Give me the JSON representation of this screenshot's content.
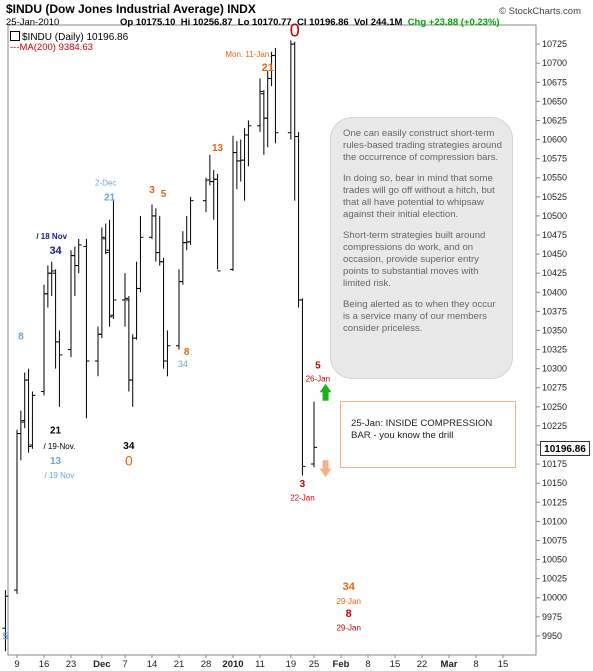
{
  "header": {
    "title": "$INDU (Dow Jones Industrial Average) INDX",
    "date": "25-Jan-2010",
    "open": "Op 10175.10",
    "high": "Hi 10256.87",
    "low": "Lo 10170.77",
    "close": "Cl 10196.86",
    "volume": "Vol 244.1M",
    "change": "Chg +23.88 (+0.23%)",
    "credit": "© StockCharts.com",
    "legend_price": "$INDU (Daily) 10196.86",
    "legend_ma": "MA(200) 9384.63"
  },
  "note": {
    "paragraphs": [
      "One can easily construct short-term rules-based trading strategies around the occurrence of compression bars.",
      "In doing so, bear in mind that some trades will go off without a hitch, but that all have potential to whipsaw against their initial election.",
      "Short-term strategies built around compressions do work, and on occasion, provide superior entry points to substantial moves with limited risk.",
      "Being alerted as to when they occur is a service many of our members consider priceless."
    ]
  },
  "callout": {
    "text": "25-Jan: INSIDE COMPRESSION BAR - you know the drill"
  },
  "last_price_label": "10196.86",
  "colors": {
    "bars": "#000000",
    "light_blue": "#6aa7d8",
    "orange": "#e5670f",
    "red": "#cc0000",
    "navy": "#1a1a8c",
    "up_arrow": "#19b219",
    "down_arrow": "#f4b183"
  },
  "chart_data": {
    "type": "ohlc",
    "title": "$INDU (Dow Jones Industrial Average) INDX",
    "ylim": [
      9925,
      10750
    ],
    "y_ticks": [
      9950,
      9975,
      10000,
      10025,
      10050,
      10075,
      10100,
      10125,
      10150,
      10175,
      10200,
      10225,
      10250,
      10275,
      10300,
      10325,
      10350,
      10375,
      10400,
      10425,
      10450,
      10475,
      10500,
      10525,
      10550,
      10575,
      10600,
      10625,
      10650,
      10675,
      10700,
      10725
    ],
    "x_ticks": [
      {
        "label": "9",
        "date": "2009-11-09"
      },
      {
        "label": "16",
        "date": "2009-11-16"
      },
      {
        "label": "23",
        "date": "2009-11-23"
      },
      {
        "label": "Dec",
        "date": "2009-12-01",
        "bold": true
      },
      {
        "label": "7",
        "date": "2009-12-07"
      },
      {
        "label": "14",
        "date": "2009-12-14"
      },
      {
        "label": "21",
        "date": "2009-12-21"
      },
      {
        "label": "28",
        "date": "2009-12-28"
      },
      {
        "label": "2010",
        "date": "2010-01-04",
        "bold": true
      },
      {
        "label": "11",
        "date": "2010-01-11"
      },
      {
        "label": "19",
        "date": "2010-01-19"
      },
      {
        "label": "25",
        "date": "2010-01-25"
      },
      {
        "label": "Feb",
        "date": "2010-02-01",
        "bold": true
      },
      {
        "label": "8",
        "date": "2010-02-08"
      },
      {
        "label": "15",
        "date": "2010-02-15"
      },
      {
        "label": "22",
        "date": "2010-02-22"
      },
      {
        "label": "Mar",
        "date": "2010-03-01",
        "bold": true
      },
      {
        "label": "8",
        "date": "2010-03-08"
      },
      {
        "label": "15",
        "date": "2010-03-15"
      }
    ],
    "bars": [
      {
        "date": "2009-11-06",
        "o": 9960,
        "h": 10010,
        "l": 9930,
        "c": 10002
      },
      {
        "date": "2009-11-09",
        "o": 10010,
        "h": 10220,
        "l": 10005,
        "c": 10215
      },
      {
        "date": "2009-11-10",
        "o": 10215,
        "h": 10245,
        "l": 10180,
        "c": 10230
      },
      {
        "date": "2009-11-11",
        "o": 10232,
        "h": 10295,
        "l": 10222,
        "c": 10285
      },
      {
        "date": "2009-11-12",
        "o": 10285,
        "h": 10300,
        "l": 10190,
        "c": 10198
      },
      {
        "date": "2009-11-13",
        "o": 10200,
        "h": 10270,
        "l": 10195,
        "c": 10265
      },
      {
        "date": "2009-11-16",
        "o": 10270,
        "h": 10410,
        "l": 10265,
        "c": 10398
      },
      {
        "date": "2009-11-17",
        "o": 10398,
        "h": 10435,
        "l": 10380,
        "c": 10425
      },
      {
        "date": "2009-11-18",
        "o": 10425,
        "h": 10440,
        "l": 10395,
        "c": 10428
      },
      {
        "date": "2009-11-19",
        "o": 10425,
        "h": 10430,
        "l": 10300,
        "c": 10335
      },
      {
        "date": "2009-11-20",
        "o": 10335,
        "h": 10350,
        "l": 10250,
        "c": 10318
      },
      {
        "date": "2009-11-23",
        "o": 10325,
        "h": 10455,
        "l": 10315,
        "c": 10448
      },
      {
        "date": "2009-11-24",
        "o": 10448,
        "h": 10460,
        "l": 10395,
        "c": 10435
      },
      {
        "date": "2009-11-25",
        "o": 10435,
        "h": 10470,
        "l": 10425,
        "c": 10462
      },
      {
        "date": "2009-11-27",
        "o": 10460,
        "h": 10470,
        "l": 10235,
        "c": 10310
      },
      {
        "date": "2009-11-30",
        "o": 10310,
        "h": 10355,
        "l": 10290,
        "c": 10345
      },
      {
        "date": "2009-12-01",
        "o": 10345,
        "h": 10485,
        "l": 10340,
        "c": 10472
      },
      {
        "date": "2009-12-02",
        "o": 10470,
        "h": 10490,
        "l": 10450,
        "c": 10452
      },
      {
        "date": "2009-12-03",
        "o": 10455,
        "h": 10495,
        "l": 10355,
        "c": 10368
      },
      {
        "date": "2009-12-04",
        "o": 10370,
        "h": 10520,
        "l": 10365,
        "c": 10390
      },
      {
        "date": "2009-12-07",
        "o": 10390,
        "h": 10425,
        "l": 10355,
        "c": 10392
      },
      {
        "date": "2009-12-08",
        "o": 10390,
        "h": 10395,
        "l": 10270,
        "c": 10285
      },
      {
        "date": "2009-12-09",
        "o": 10285,
        "h": 10345,
        "l": 10250,
        "c": 10340
      },
      {
        "date": "2009-12-10",
        "o": 10340,
        "h": 10440,
        "l": 10338,
        "c": 10405
      },
      {
        "date": "2009-12-11",
        "o": 10405,
        "h": 10500,
        "l": 10400,
        "c": 10472
      },
      {
        "date": "2009-12-14",
        "o": 10472,
        "h": 10515,
        "l": 10470,
        "c": 10500
      },
      {
        "date": "2009-12-15",
        "o": 10500,
        "h": 10510,
        "l": 10440,
        "c": 10452
      },
      {
        "date": "2009-12-16",
        "o": 10452,
        "h": 10500,
        "l": 10435,
        "c": 10440
      },
      {
        "date": "2009-12-17",
        "o": 10440,
        "h": 10445,
        "l": 10300,
        "c": 10310
      },
      {
        "date": "2009-12-18",
        "o": 10310,
        "h": 10350,
        "l": 10290,
        "c": 10330
      },
      {
        "date": "2009-12-21",
        "o": 10330,
        "h": 10430,
        "l": 10325,
        "c": 10414
      },
      {
        "date": "2009-12-22",
        "o": 10414,
        "h": 10480,
        "l": 10410,
        "c": 10465
      },
      {
        "date": "2009-12-23",
        "o": 10465,
        "h": 10500,
        "l": 10455,
        "c": 10466
      },
      {
        "date": "2009-12-24",
        "o": 10466,
        "h": 10525,
        "l": 10462,
        "c": 10520
      },
      {
        "date": "2009-12-28",
        "o": 10520,
        "h": 10550,
        "l": 10505,
        "c": 10547
      },
      {
        "date": "2009-12-29",
        "o": 10547,
        "h": 10580,
        "l": 10540,
        "c": 10545
      },
      {
        "date": "2009-12-30",
        "o": 10545,
        "h": 10560,
        "l": 10495,
        "c": 10548
      },
      {
        "date": "2009-12-31",
        "o": 10548,
        "h": 10555,
        "l": 10430,
        "c": 10428
      },
      {
        "date": "2010-01-04",
        "o": 10430,
        "h": 10605,
        "l": 10428,
        "c": 10583
      },
      {
        "date": "2010-01-05",
        "o": 10583,
        "h": 10598,
        "l": 10535,
        "c": 10572
      },
      {
        "date": "2010-01-06",
        "o": 10572,
        "h": 10600,
        "l": 10545,
        "c": 10573
      },
      {
        "date": "2010-01-07",
        "o": 10573,
        "h": 10615,
        "l": 10520,
        "c": 10606
      },
      {
        "date": "2010-01-08",
        "o": 10606,
        "h": 10625,
        "l": 10565,
        "c": 10618
      },
      {
        "date": "2010-01-11",
        "o": 10618,
        "h": 10680,
        "l": 10610,
        "c": 10663
      },
      {
        "date": "2010-01-12",
        "o": 10660,
        "h": 10665,
        "l": 10580,
        "c": 10628
      },
      {
        "date": "2010-01-13",
        "o": 10628,
        "h": 10690,
        "l": 10590,
        "c": 10680
      },
      {
        "date": "2010-01-14",
        "o": 10680,
        "h": 10715,
        "l": 10670,
        "c": 10710
      },
      {
        "date": "2010-01-15",
        "o": 10710,
        "h": 10720,
        "l": 10595,
        "c": 10609
      },
      {
        "date": "2010-01-19",
        "o": 10609,
        "h": 10730,
        "l": 10600,
        "c": 10725
      },
      {
        "date": "2010-01-20",
        "o": 10725,
        "h": 10728,
        "l": 10520,
        "c": 10604
      },
      {
        "date": "2010-01-21",
        "o": 10604,
        "h": 10610,
        "l": 10380,
        "c": 10390
      },
      {
        "date": "2010-01-22",
        "o": 10390,
        "h": 10392,
        "l": 10160,
        "c": 10172
      },
      {
        "date": "2010-01-25",
        "o": 10175.1,
        "h": 10256.87,
        "l": 10170.77,
        "c": 10196.86
      }
    ],
    "wave_labels": [
      {
        "text": "5",
        "date": "2009-11-06",
        "y": 9945,
        "color": "light_blue",
        "size": 10,
        "bold": true
      },
      {
        "text": "8",
        "date": "2009-11-10",
        "y": 10338,
        "color": "light_blue",
        "size": 10,
        "bold": true
      },
      {
        "text": "21",
        "date": "2009-11-19",
        "y": 10215,
        "color": "bars",
        "size": 10,
        "bold": true
      },
      {
        "text": "13",
        "date": "2009-11-19",
        "y": 10175,
        "color": "light_blue",
        "size": 10,
        "bold": true
      },
      {
        "text": "/ 19-Nov.",
        "date": "2009-11-20",
        "y": 10195,
        "color": "bars",
        "size": 8,
        "bold": false
      },
      {
        "text": "/ 19 Nov",
        "date": "2009-11-20",
        "y": 10157,
        "color": "light_blue",
        "size": 8,
        "bold": false
      },
      {
        "text": "/ 18 Nov",
        "date": "2009-11-18",
        "y": 10470,
        "color": "navy",
        "size": 8,
        "bold": true
      },
      {
        "text": "34",
        "date": "2009-11-19",
        "y": 10450,
        "color": "navy",
        "size": 11,
        "bold": true
      },
      {
        "text": "2-Dec",
        "date": "2009-12-02",
        "y": 10540,
        "color": "light_blue",
        "size": 8,
        "bold": false
      },
      {
        "text": "21",
        "date": "2009-12-03",
        "y": 10520,
        "color": "light_blue",
        "size": 10,
        "bold": true
      },
      {
        "text": "34",
        "date": "2009-12-08",
        "y": 10195,
        "color": "bars",
        "size": 10,
        "bold": true
      },
      {
        "text": "0",
        "date": "2009-12-08",
        "y": 10173,
        "color": "orange",
        "size": 14,
        "bold": false
      },
      {
        "text": "3",
        "date": "2009-12-14",
        "y": 10530,
        "color": "orange",
        "size": 10,
        "bold": true
      },
      {
        "text": "5",
        "date": "2009-12-17",
        "y": 10525,
        "color": "orange",
        "size": 10,
        "bold": true
      },
      {
        "text": "8",
        "date": "2009-12-23",
        "y": 10318,
        "color": "orange",
        "size": 10,
        "bold": true
      },
      {
        "text": "34",
        "date": "2009-12-22",
        "y": 10302,
        "color": "light_blue",
        "size": 9,
        "bold": false
      },
      {
        "text": "13",
        "date": "2009-12-31",
        "y": 10585,
        "color": "orange",
        "size": 10,
        "bold": true
      },
      {
        "text": "Mon. 11-Jan.",
        "date": "2010-01-08",
        "y": 10708,
        "color": "orange",
        "size": 8,
        "bold": false
      },
      {
        "text": "21",
        "date": "2010-01-13",
        "y": 10690,
        "color": "orange",
        "size": 11,
        "bold": true
      },
      {
        "text": "0",
        "date": "2010-01-20",
        "y": 10735,
        "color": "red",
        "size": 18,
        "bold": false
      },
      {
        "text": "5",
        "date": "2010-01-26",
        "y": 10300,
        "color": "red",
        "size": 10,
        "bold": true
      },
      {
        "text": "26-Jan",
        "date": "2010-01-26",
        "y": 10283,
        "color": "red",
        "size": 8,
        "bold": false
      },
      {
        "text": "3",
        "date": "2010-01-22",
        "y": 10145,
        "color": "red",
        "size": 10,
        "bold": true
      },
      {
        "text": "22-Jan",
        "date": "2010-01-22",
        "y": 10127,
        "color": "red",
        "size": 8,
        "bold": false
      },
      {
        "text": "34",
        "date": "2010-02-03",
        "y": 10010,
        "color": "orange",
        "size": 11,
        "bold": true
      },
      {
        "text": "29-Jan",
        "date": "2010-02-03",
        "y": 9992,
        "color": "orange",
        "size": 8,
        "bold": false
      },
      {
        "text": "8",
        "date": "2010-02-03",
        "y": 9975,
        "color": "red",
        "size": 11,
        "bold": true
      },
      {
        "text": "29-Jan",
        "date": "2010-02-03",
        "y": 9957,
        "color": "red",
        "size": 8,
        "bold": false
      }
    ],
    "arrows": [
      {
        "direction": "up",
        "date": "2010-01-28",
        "y_top": 10280,
        "y_bottom": 10258,
        "color": "up_arrow"
      },
      {
        "direction": "down",
        "date": "2010-01-28",
        "y_top": 10180,
        "y_bottom": 10158,
        "color": "down_arrow"
      }
    ],
    "grid": false,
    "y_axis_side": "right"
  }
}
